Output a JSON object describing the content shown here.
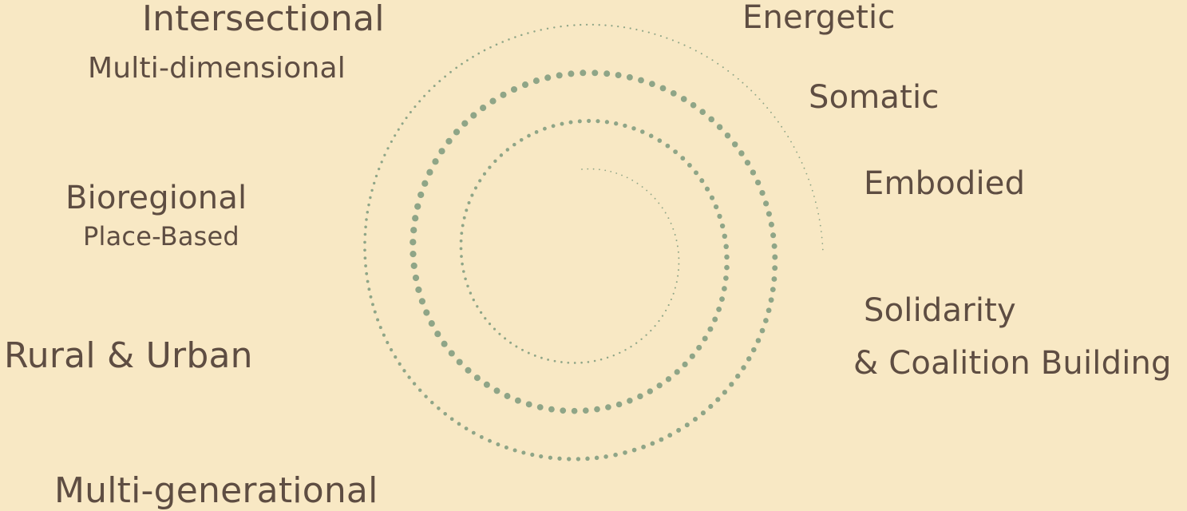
{
  "colors": {
    "background": "#f8e8c4",
    "dots": "#8fa587",
    "text": "#5e4d42"
  },
  "labels_left": {
    "intersectional": "Intersectional",
    "multi_dimensional": "Multi-dimensional",
    "bioregional": "Bioregional",
    "place_based": "Place-Based",
    "rural_urban": "Rural & Urban",
    "multi_generational": "Multi-generational"
  },
  "labels_right": {
    "energetic": "Energetic",
    "somatic": "Somatic",
    "embodied": "Embodied",
    "solidarity": "Solidarity",
    "coalition_building": "& Coalition Building"
  }
}
